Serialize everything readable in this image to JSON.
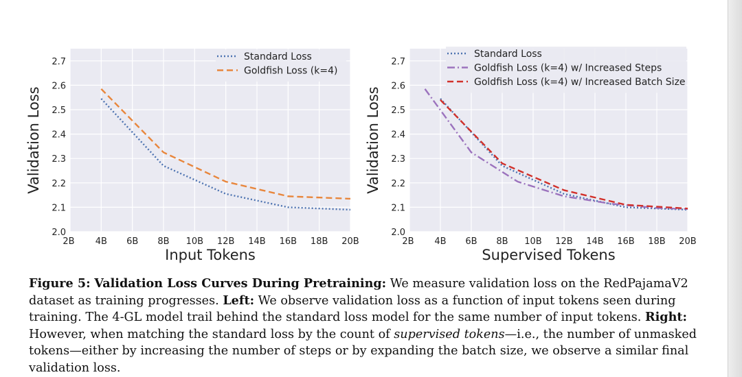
{
  "colors": {
    "blue": "#4c72b0",
    "orange": "#e8863c",
    "purple": "#9b72bd",
    "red": "#d1312b",
    "grid": "#ffffff",
    "plotBg": "#eaeaf2",
    "text": "#222222"
  },
  "chart_data": [
    {
      "type": "line",
      "xlabel": "Input Tokens",
      "ylabel": "Validation Loss",
      "xticks": [
        "2B",
        "4B",
        "6B",
        "8B",
        "10B",
        "12B",
        "14B",
        "16B",
        "18B",
        "20B"
      ],
      "yticks": [
        "2.0",
        "2.1",
        "2.2",
        "2.3",
        "2.4",
        "2.5",
        "2.6",
        "2.7"
      ],
      "xlim": [
        2,
        20
      ],
      "ylim": [
        2.0,
        2.75
      ],
      "grid": true,
      "legend": "top-right",
      "series": [
        {
          "name": "Standard Loss",
          "style": "dotted",
          "color": "#4c72b0",
          "x": [
            4,
            8,
            12,
            16,
            20
          ],
          "y": [
            2.545,
            2.27,
            2.155,
            2.1,
            2.09
          ]
        },
        {
          "name": "Goldfish Loss (k=4)",
          "style": "dashed",
          "color": "#e8863c",
          "x": [
            4,
            8,
            12,
            16,
            20
          ],
          "y": [
            2.585,
            2.325,
            2.205,
            2.145,
            2.135
          ]
        }
      ]
    },
    {
      "type": "line",
      "xlabel": "Supervised Tokens",
      "ylabel": "Validation Loss",
      "xticks": [
        "2B",
        "4B",
        "6B",
        "8B",
        "10B",
        "12B",
        "14B",
        "16B",
        "18B",
        "20B"
      ],
      "yticks": [
        "2.0",
        "2.1",
        "2.2",
        "2.3",
        "2.4",
        "2.5",
        "2.6",
        "2.7"
      ],
      "xlim": [
        2,
        20
      ],
      "ylim": [
        2.0,
        2.75
      ],
      "grid": true,
      "legend": "top-right",
      "series": [
        {
          "name": "Standard Loss",
          "style": "dotted",
          "color": "#4c72b0",
          "x": [
            4,
            8,
            12,
            16,
            20
          ],
          "y": [
            2.545,
            2.27,
            2.155,
            2.1,
            2.09
          ]
        },
        {
          "name": "Goldfish Loss (k=4) w/ Increased Steps",
          "style": "dashdot",
          "color": "#9b72bd",
          "x": [
            3,
            6,
            9,
            12,
            15,
            18,
            20
          ],
          "y": [
            2.585,
            2.325,
            2.205,
            2.145,
            2.115,
            2.097,
            2.093
          ]
        },
        {
          "name": "Goldfish Loss (k=4) w/ Increased Batch Size",
          "style": "dashed",
          "color": "#d1312b",
          "x": [
            4,
            8,
            12,
            16,
            20
          ],
          "y": [
            2.54,
            2.28,
            2.17,
            2.11,
            2.095
          ]
        }
      ]
    }
  ],
  "caption": {
    "figure_label": "Figure 5:",
    "title": "Validation Loss Curves During Pretraining:",
    "text1": " We measure validation loss on the RedPajamaV2 dataset as training progresses. ",
    "left_label": "Left:",
    "text2": " We observe validation loss as a function of input tokens seen during training. The 4-GL model trail behind the standard loss model for the same number of input tokens. ",
    "right_label": "Right:",
    "text3": " However, when matching the standard loss by the count of ",
    "emph": "supervised tokens",
    "text4": "—i.e., the number of unmasked tokens—either by increasing the number of steps or by expanding the batch size, we observe a similar final validation loss."
  }
}
